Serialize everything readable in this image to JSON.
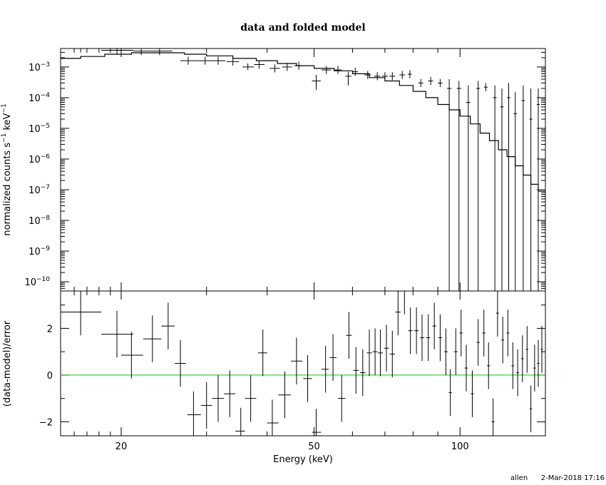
{
  "chart_data": [
    {
      "panel": "upper",
      "type": "scatter",
      "title": "data and folded model",
      "xlabel": "",
      "ylabel": "normalized counts s⁻¹ keV⁻¹",
      "xscale": "log",
      "yscale": "log",
      "xlim": [
        15,
        150
      ],
      "ylim": [
        5e-11,
        0.004
      ],
      "ytick_labels": [
        {
          "base": "10",
          "exp": "-3",
          "value": 0.001
        },
        {
          "base": "10",
          "exp": "-4",
          "value": 0.0001
        },
        {
          "base": "10",
          "exp": "-5",
          "value": 1e-05
        },
        {
          "base": "10",
          "exp": "-6",
          "value": 1e-06
        },
        {
          "base": "10",
          "exp": "-7",
          "value": 1e-07
        },
        {
          "base": "10",
          "exp": "-8",
          "value": 1e-08
        },
        {
          "base": "10",
          "exp": "-9",
          "value": 1e-09
        },
        {
          "base": "10",
          "exp": "-10",
          "value": 1e-10
        }
      ],
      "series": [
        {
          "kind": "data",
          "color": "#000000",
          "points": [
            {
              "x": 16.5,
              "xlo": 15.0,
              "xhi": 18.2,
              "y": 0.004
            },
            {
              "x": 19.6,
              "xlo": 18.2,
              "xhi": 21.2,
              "y": 0.0035
            },
            {
              "x": 22.0,
              "xlo": 21.2,
              "xhi": 23.0,
              "y": 0.0033
            },
            {
              "x": 24.0,
              "xlo": 23.0,
              "xhi": 25.5,
              "y": 0.0033
            },
            {
              "x": 27.5,
              "xlo": 26.5,
              "xhi": 28.8,
              "y": 0.0016
            },
            {
              "x": 29.8,
              "xlo": 28.8,
              "xhi": 30.8,
              "y": 0.0016
            },
            {
              "x": 31.7,
              "xlo": 30.8,
              "xhi": 32.8,
              "y": 0.0016
            },
            {
              "x": 34.0,
              "xlo": 33.0,
              "xhi": 35.0,
              "y": 0.0015
            },
            {
              "x": 36.5,
              "xlo": 35.6,
              "xhi": 37.6,
              "y": 0.001,
              "ylo": 0.0008,
              "yhi": 0.0013
            },
            {
              "x": 38.5,
              "xlo": 37.6,
              "xhi": 39.5,
              "y": 0.0012
            },
            {
              "x": 41.5,
              "xlo": 40.5,
              "xhi": 42.5,
              "y": 0.0009
            },
            {
              "x": 44.0,
              "xlo": 43.0,
              "xhi": 45.0,
              "y": 0.001
            },
            {
              "x": 46.5,
              "xlo": 45.5,
              "xhi": 47.5,
              "y": 0.0011
            },
            {
              "x": 50.5,
              "xlo": 49.5,
              "xhi": 51.6,
              "y": 0.00035,
              "ylo": 0.00018,
              "yhi": 0.00055
            },
            {
              "x": 53.0,
              "xlo": 51.8,
              "xhi": 54.2,
              "y": 0.0008
            },
            {
              "x": 56.0,
              "xlo": 55.0,
              "xhi": 57.0,
              "y": 0.0008
            },
            {
              "x": 58.8,
              "xlo": 58.0,
              "xhi": 59.7,
              "y": 0.0005,
              "ylo": 0.00025,
              "yhi": 0.0007
            },
            {
              "x": 60.8,
              "xlo": 60.0,
              "xhi": 61.6,
              "y": 0.0007
            },
            {
              "x": 64.5,
              "xlo": 63.5,
              "xhi": 65.5,
              "y": 0.00055
            },
            {
              "x": 67.5,
              "xlo": 66.5,
              "xhi": 68.5,
              "y": 0.0005
            },
            {
              "x": 70.0,
              "xlo": 69.0,
              "xhi": 71.0,
              "y": 0.0005
            },
            {
              "x": 72.5,
              "xlo": 71.5,
              "xhi": 73.5,
              "y": 0.0005
            },
            {
              "x": 76.0,
              "xlo": 75.0,
              "xhi": 77.0,
              "y": 0.00055
            },
            {
              "x": 78.8,
              "xlo": 78.0,
              "xhi": 79.5,
              "y": 0.00058
            },
            {
              "x": 83.0,
              "xlo": 82.0,
              "xhi": 84.0,
              "y": 0.0003
            },
            {
              "x": 87.0,
              "xlo": 86.0,
              "xhi": 88.0,
              "y": 0.00035
            },
            {
              "x": 91.0,
              "xlo": 90.0,
              "xhi": 92.0,
              "y": 0.0003
            },
            {
              "x": 95.0,
              "xlo": 94.0,
              "xhi": 96.0,
              "y": 0.0002,
              "ylo": 5e-11,
              "yhi": 0.0004
            },
            {
              "x": 99.5,
              "xlo": 98.5,
              "xhi": 100.5,
              "y": 0.0002,
              "ylo": 5e-11,
              "yhi": 0.00035
            },
            {
              "x": 104.0,
              "xlo": 103.0,
              "xhi": 105.0,
              "y": 7e-05,
              "ylo": 5e-11,
              "yhi": 0.00025
            },
            {
              "x": 109.0,
              "xlo": 108.0,
              "xhi": 110.0,
              "y": 0.0002,
              "ylo": 5e-11,
              "yhi": 0.00035
            },
            {
              "x": 113.0,
              "xlo": 112.0,
              "xhi": 114.0,
              "y": 0.00022
            },
            {
              "x": 118.0,
              "xlo": 117.0,
              "xhi": 119.0,
              "y": 0.0001,
              "ylo": 5e-11,
              "yhi": 0.00025
            },
            {
              "x": 122.0,
              "xlo": 121.0,
              "xhi": 123.0,
              "y": 5e-05,
              "ylo": 5e-11,
              "yhi": 0.0002
            },
            {
              "x": 126.0,
              "xlo": 125.0,
              "xhi": 127.0,
              "y": 0.0001,
              "ylo": 5e-11,
              "yhi": 0.0003
            },
            {
              "x": 130.0,
              "xlo": 129.0,
              "xhi": 131.0,
              "y": 3e-05,
              "ylo": 5e-11,
              "yhi": 0.00015
            },
            {
              "x": 135.0,
              "xlo": 134.0,
              "xhi": 136.0,
              "y": 8e-05,
              "ylo": 5e-11,
              "yhi": 0.00025
            },
            {
              "x": 140.0,
              "xlo": 139.0,
              "xhi": 141.0,
              "y": 2e-05,
              "ylo": 5e-11,
              "yhi": 0.0002
            },
            {
              "x": 145.0,
              "xlo": 144.0,
              "xhi": 146.0,
              "y": 6e-05,
              "ylo": 5e-11,
              "yhi": 0.0002
            }
          ]
        },
        {
          "kind": "model",
          "color": "#000000",
          "points": [
            [
              15,
              0.0019
            ],
            [
              16.5,
              0.0022
            ],
            [
              18.5,
              0.0026
            ],
            [
              21,
              0.0029
            ],
            [
              24,
              0.0029
            ],
            [
              27,
              0.0026
            ],
            [
              30,
              0.0023
            ],
            [
              34,
              0.0019
            ],
            [
              38,
              0.0016
            ],
            [
              42,
              0.0013
            ],
            [
              46,
              0.0011
            ],
            [
              50,
              0.0009
            ],
            [
              55,
              0.00075
            ],
            [
              60,
              0.0006
            ],
            [
              65,
              0.00045
            ],
            [
              70,
              0.00035
            ],
            [
              75,
              0.00025
            ],
            [
              80,
              0.00016
            ],
            [
              85,
              0.0001
            ],
            [
              90,
              6e-05
            ],
            [
              95,
              4e-05
            ],
            [
              100,
              2.5e-05
            ],
            [
              105,
              1.4e-05
            ],
            [
              110,
              7e-06
            ],
            [
              115,
              4e-06
            ],
            [
              120,
              2e-06
            ],
            [
              125,
              1.2e-06
            ],
            [
              130,
              6e-07
            ],
            [
              135,
              3e-07
            ],
            [
              140,
              1.5e-07
            ],
            [
              145,
              9e-08
            ],
            [
              150,
              6e-08
            ]
          ]
        }
      ]
    },
    {
      "panel": "lower",
      "type": "scatter",
      "xlabel": "Energy (keV)",
      "ylabel": "(data-model)/error",
      "xscale": "log",
      "xlim": [
        15,
        150
      ],
      "ylim": [
        -2.6,
        3.6
      ],
      "xtick_labels": [
        {
          "label": "20",
          "value": 20
        },
        {
          "label": "50",
          "value": 50
        },
        {
          "label": "100",
          "value": 100
        }
      ],
      "ytick_labels": [
        {
          "label": "2",
          "value": 2
        },
        {
          "label": "0",
          "value": 0
        },
        {
          "label": "−2",
          "value": -2
        }
      ],
      "zero_line_color": "#00cc00",
      "series": [
        {
          "kind": "residuals",
          "color": "#000000",
          "points": [
            {
              "x": 16.5,
              "xlo": 15.0,
              "xhi": 18.2,
              "y": 2.7,
              "err": 1.0
            },
            {
              "x": 19.6,
              "xlo": 18.2,
              "xhi": 21.2,
              "y": 1.75,
              "err": 1.0
            },
            {
              "x": 21.0,
              "xlo": 20.0,
              "xhi": 22.2,
              "y": 0.85,
              "err": 1.0
            },
            {
              "x": 23.2,
              "xlo": 22.2,
              "xhi": 24.2,
              "y": 1.55,
              "err": 1.0
            },
            {
              "x": 25.0,
              "xlo": 24.2,
              "xhi": 25.8,
              "y": 2.1,
              "err": 1.0
            },
            {
              "x": 26.5,
              "xlo": 25.8,
              "xhi": 27.2,
              "y": 0.5,
              "err": 1.0
            },
            {
              "x": 28.2,
              "xlo": 27.4,
              "xhi": 29.2,
              "y": -1.7,
              "err": 1.0
            },
            {
              "x": 30.0,
              "xlo": 29.2,
              "xhi": 30.8,
              "y": -1.3,
              "err": 1.0
            },
            {
              "x": 31.7,
              "xlo": 30.8,
              "xhi": 32.6,
              "y": -1.0,
              "err": 1.0
            },
            {
              "x": 33.5,
              "xlo": 32.6,
              "xhi": 34.4,
              "y": -0.8,
              "err": 1.0
            },
            {
              "x": 35.3,
              "xlo": 34.4,
              "xhi": 36.0,
              "y": -2.4,
              "err": 1.0
            },
            {
              "x": 37.0,
              "xlo": 36.0,
              "xhi": 38.0,
              "y": -1.0,
              "err": 1.0
            },
            {
              "x": 39.2,
              "xlo": 38.3,
              "xhi": 40.0,
              "y": 0.95,
              "err": 1.0
            },
            {
              "x": 41.0,
              "xlo": 40.0,
              "xhi": 42.2,
              "y": -2.05,
              "err": 1.0
            },
            {
              "x": 43.5,
              "xlo": 42.2,
              "xhi": 44.8,
              "y": -0.85,
              "err": 1.0
            },
            {
              "x": 46.0,
              "xlo": 44.8,
              "xhi": 47.3,
              "y": 0.6,
              "err": 1.0
            },
            {
              "x": 48.5,
              "xlo": 47.5,
              "xhi": 49.5,
              "y": -0.15,
              "err": 1.0
            },
            {
              "x": 50.5,
              "xlo": 49.5,
              "xhi": 51.7,
              "y": -2.45,
              "err": 1.0
            },
            {
              "x": 52.8,
              "xlo": 51.8,
              "xhi": 53.6,
              "y": 0.25,
              "err": 1.0
            },
            {
              "x": 54.7,
              "xlo": 53.8,
              "xhi": 55.6,
              "y": 0.75,
              "err": 1.0
            },
            {
              "x": 57.0,
              "xlo": 56.0,
              "xhi": 58.0,
              "y": -1.0,
              "err": 1.0
            },
            {
              "x": 59.0,
              "xlo": 58.2,
              "xhi": 59.8,
              "y": 1.7,
              "err": 1.0
            },
            {
              "x": 61.0,
              "xlo": 60.2,
              "xhi": 61.8,
              "y": 0.2,
              "err": 1.0
            },
            {
              "x": 63.0,
              "xlo": 62.2,
              "xhi": 63.8,
              "y": 0.1,
              "err": 1.0
            },
            {
              "x": 65.0,
              "xlo": 64.2,
              "xhi": 65.8,
              "y": 0.95,
              "err": 1.0
            },
            {
              "x": 66.8,
              "xlo": 66.0,
              "xhi": 67.6,
              "y": 1.0,
              "err": 1.0
            },
            {
              "x": 68.5,
              "xlo": 67.7,
              "xhi": 69.3,
              "y": 0.95,
              "err": 1.0
            },
            {
              "x": 70.5,
              "xlo": 69.7,
              "xhi": 71.3,
              "y": 1.15,
              "err": 1.0
            },
            {
              "x": 72.5,
              "xlo": 71.6,
              "xhi": 73.4,
              "y": 0.9,
              "err": 1.0
            },
            {
              "x": 74.5,
              "xlo": 73.6,
              "xhi": 75.4,
              "y": 2.7,
              "err": 1.0
            },
            {
              "x": 76.8,
              "xlo": 76.0,
              "xhi": 77.6,
              "y": 3.6,
              "err": 1.0
            },
            {
              "x": 79.0,
              "xlo": 78.2,
              "xhi": 79.8,
              "y": 1.9,
              "err": 1.0
            },
            {
              "x": 81.3,
              "xlo": 80.5,
              "xhi": 82.1,
              "y": 1.9,
              "err": 1.0
            },
            {
              "x": 83.5,
              "xlo": 82.7,
              "xhi": 84.3,
              "y": 1.6,
              "err": 1.0
            },
            {
              "x": 86.0,
              "xlo": 85.2,
              "xhi": 86.8,
              "y": 1.6,
              "err": 1.0
            },
            {
              "x": 88.5,
              "xlo": 87.7,
              "xhi": 89.3,
              "y": 2.1,
              "err": 1.0
            },
            {
              "x": 91.0,
              "xlo": 90.2,
              "xhi": 91.8,
              "y": 1.6,
              "err": 1.0
            },
            {
              "x": 93.5,
              "xlo": 92.7,
              "xhi": 94.3,
              "y": 1.0,
              "err": 1.0
            },
            {
              "x": 95.5,
              "xlo": 94.8,
              "xhi": 96.2,
              "y": -0.75,
              "err": 1.0
            },
            {
              "x": 98.0,
              "xlo": 97.2,
              "xhi": 98.8,
              "y": 1.0,
              "err": 1.0
            },
            {
              "x": 100.5,
              "xlo": 99.7,
              "xhi": 101.3,
              "y": 1.8,
              "err": 1.0
            },
            {
              "x": 103.0,
              "xlo": 102.2,
              "xhi": 103.8,
              "y": 0.3,
              "err": 1.0
            },
            {
              "x": 106.0,
              "xlo": 105.2,
              "xhi": 106.8,
              "y": -0.8,
              "err": 1.0
            },
            {
              "x": 109.0,
              "xlo": 108.2,
              "xhi": 109.8,
              "y": 1.4,
              "err": 1.0
            },
            {
              "x": 112.0,
              "xlo": 111.2,
              "xhi": 112.8,
              "y": 1.8,
              "err": 1.0
            },
            {
              "x": 114.5,
              "xlo": 113.7,
              "xhi": 115.3,
              "y": 0.4,
              "err": 1.0
            },
            {
              "x": 117.0,
              "xlo": 116.2,
              "xhi": 117.8,
              "y": -2.0,
              "err": 1.0
            },
            {
              "x": 119.5,
              "xlo": 118.7,
              "xhi": 120.3,
              "y": 2.65,
              "err": 1.0
            },
            {
              "x": 122.5,
              "xlo": 121.7,
              "xhi": 123.3,
              "y": 1.5,
              "err": 1.0
            },
            {
              "x": 125.5,
              "xlo": 124.7,
              "xhi": 126.3,
              "y": 1.8,
              "err": 1.0
            },
            {
              "x": 128.5,
              "xlo": 127.7,
              "xhi": 129.3,
              "y": 0.4,
              "err": 1.0
            },
            {
              "x": 131.5,
              "xlo": 130.7,
              "xhi": 132.3,
              "y": 0.1,
              "err": 1.0
            },
            {
              "x": 134.5,
              "xlo": 133.7,
              "xhi": 135.3,
              "y": 0.7,
              "err": 1.0
            },
            {
              "x": 137.5,
              "xlo": 136.7,
              "xhi": 138.3,
              "y": 1.1,
              "err": 1.0
            },
            {
              "x": 140.0,
              "xlo": 139.2,
              "xhi": 140.8,
              "y": -1.45,
              "err": 1.0
            },
            {
              "x": 142.5,
              "xlo": 141.7,
              "xhi": 143.3,
              "y": 0.3,
              "err": 1.0
            },
            {
              "x": 145.0,
              "xlo": 144.2,
              "xhi": 145.8,
              "y": 0.5,
              "err": 1.0
            },
            {
              "x": 147.5,
              "xlo": 146.7,
              "xhi": 148.3,
              "y": 1.1,
              "err": 1.0
            }
          ]
        }
      ]
    }
  ],
  "footer": {
    "user": "allen",
    "timestamp": "2-Mar-2018 17:16"
  }
}
